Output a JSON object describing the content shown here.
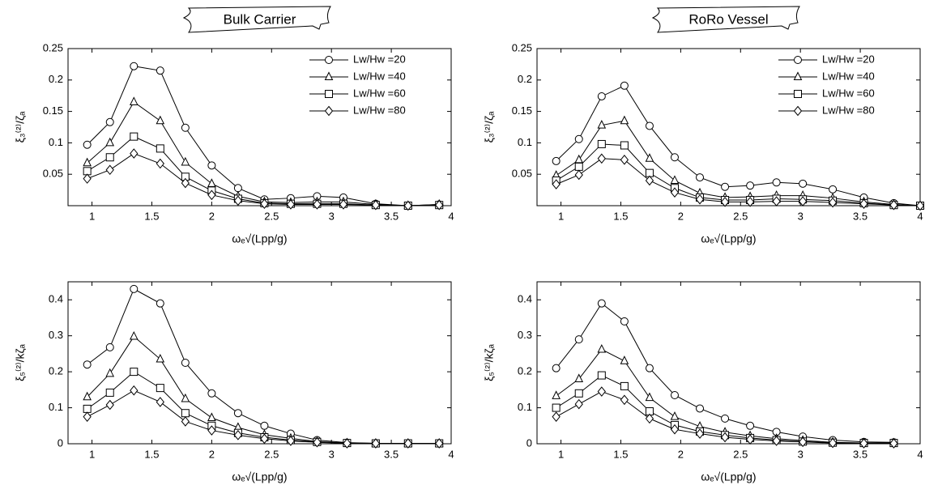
{
  "chart_data": [
    {
      "type": "line",
      "title": "Bulk Carrier",
      "x_label": "ωₑ√(Lpp/g)",
      "y_label": "ξ₃⁽²⁾/ζₐ",
      "x": [
        0.96,
        1.15,
        1.35,
        1.57,
        1.78,
        2.0,
        2.22,
        2.44,
        2.66,
        2.88,
        3.1,
        3.37,
        3.64,
        3.9
      ],
      "xlim": [
        0.8,
        4
      ],
      "xticks": [
        1,
        1.5,
        2,
        2.5,
        3,
        3.5,
        4
      ],
      "ylim": [
        0,
        0.25
      ],
      "yticks": [
        0.05,
        0.1,
        0.15,
        0.2,
        0.25
      ],
      "legend": "upper right",
      "series": [
        {
          "name": "Lw/Hw =20",
          "color": "#000000",
          "marker": "circle",
          "values": [
            0.097,
            0.133,
            0.222,
            0.215,
            0.124,
            0.064,
            0.028,
            0.01,
            0.012,
            0.015,
            0.013,
            0.003,
            0.0,
            0.002
          ]
        },
        {
          "name": "Lw/Hw =40",
          "color": "#000000",
          "marker": "triangle",
          "values": [
            0.068,
            0.1,
            0.165,
            0.135,
            0.069,
            0.035,
            0.015,
            0.006,
            0.005,
            0.006,
            0.006,
            0.002,
            0.0,
            0.002
          ]
        },
        {
          "name": "Lw/Hw =60",
          "color": "#000000",
          "marker": "square",
          "values": [
            0.055,
            0.077,
            0.11,
            0.091,
            0.046,
            0.024,
            0.011,
            0.004,
            0.003,
            0.003,
            0.003,
            0.001,
            0.0,
            0.001
          ]
        },
        {
          "name": "Lw/Hw =80",
          "color": "#000000",
          "marker": "diamond",
          "values": [
            0.043,
            0.057,
            0.083,
            0.067,
            0.036,
            0.017,
            0.008,
            0.003,
            0.002,
            0.002,
            0.002,
            0.001,
            0.0,
            0.001
          ]
        }
      ]
    },
    {
      "type": "line",
      "title": "RoRo Vessel",
      "x_label": "ωₑ√(Lpp/g)",
      "y_label": "ξ₃⁽²⁾/ζₐ",
      "x": [
        0.96,
        1.15,
        1.34,
        1.53,
        1.74,
        1.95,
        2.16,
        2.37,
        2.58,
        2.8,
        3.02,
        3.27,
        3.53,
        3.78,
        4.0
      ],
      "xlim": [
        0.8,
        4
      ],
      "xticks": [
        1,
        1.5,
        2,
        2.5,
        3,
        3.5,
        4
      ],
      "ylim": [
        0,
        0.25
      ],
      "yticks": [
        0.05,
        0.1,
        0.15,
        0.2,
        0.25
      ],
      "legend": "upper right",
      "series": [
        {
          "name": "Lw/Hw =20",
          "color": "#000000",
          "marker": "circle",
          "values": [
            0.071,
            0.106,
            0.174,
            0.191,
            0.127,
            0.077,
            0.045,
            0.03,
            0.032,
            0.037,
            0.035,
            0.026,
            0.013,
            0.004,
            0.0
          ]
        },
        {
          "name": "Lw/Hw =40",
          "color": "#000000",
          "marker": "triangle",
          "values": [
            0.048,
            0.073,
            0.128,
            0.135,
            0.075,
            0.04,
            0.02,
            0.013,
            0.014,
            0.016,
            0.016,
            0.012,
            0.006,
            0.002,
            0.0
          ]
        },
        {
          "name": "Lw/Hw =60",
          "color": "#000000",
          "marker": "square",
          "values": [
            0.04,
            0.062,
            0.098,
            0.096,
            0.052,
            0.028,
            0.013,
            0.009,
            0.009,
            0.011,
            0.01,
            0.008,
            0.004,
            0.001,
            0.0
          ]
        },
        {
          "name": "Lw/Hw =80",
          "color": "#000000",
          "marker": "diamond",
          "values": [
            0.034,
            0.049,
            0.075,
            0.073,
            0.04,
            0.021,
            0.01,
            0.006,
            0.006,
            0.007,
            0.007,
            0.005,
            0.003,
            0.001,
            0.0
          ]
        }
      ]
    },
    {
      "type": "line",
      "x_label": "ωₑ√(Lpp/g)",
      "y_label": "ξ₅⁽²⁾/kζₐ",
      "x": [
        0.96,
        1.15,
        1.35,
        1.57,
        1.78,
        2.0,
        2.22,
        2.44,
        2.66,
        2.88,
        3.13,
        3.37,
        3.64,
        3.9
      ],
      "xlim": [
        0.8,
        4
      ],
      "xticks": [
        1,
        1.5,
        2,
        2.5,
        3,
        3.5,
        4
      ],
      "ylim": [
        0,
        0.45
      ],
      "yticks": [
        0,
        0.1,
        0.2,
        0.3,
        0.4
      ],
      "series": [
        {
          "color": "#000000",
          "marker": "circle",
          "values": [
            0.22,
            0.268,
            0.43,
            0.39,
            0.225,
            0.14,
            0.085,
            0.05,
            0.028,
            0.01,
            0.003,
            0.001,
            0.001,
            0.001
          ]
        },
        {
          "color": "#000000",
          "marker": "triangle",
          "values": [
            0.13,
            0.195,
            0.298,
            0.235,
            0.125,
            0.072,
            0.045,
            0.025,
            0.015,
            0.006,
            0.002,
            0.001,
            0.001,
            0.001
          ]
        },
        {
          "color": "#000000",
          "marker": "square",
          "values": [
            0.097,
            0.142,
            0.2,
            0.155,
            0.085,
            0.05,
            0.03,
            0.018,
            0.01,
            0.005,
            0.002,
            0.001,
            0.001,
            0.001
          ]
        },
        {
          "color": "#000000",
          "marker": "diamond",
          "values": [
            0.075,
            0.108,
            0.148,
            0.116,
            0.062,
            0.037,
            0.024,
            0.014,
            0.008,
            0.004,
            0.001,
            0.001,
            0.001,
            0.001
          ]
        }
      ]
    },
    {
      "type": "line",
      "x_label": "ωₑ√(Lpp/g)",
      "y_label": "ξ₅⁽²⁾/kζₐ",
      "x": [
        0.96,
        1.15,
        1.34,
        1.53,
        1.74,
        1.95,
        2.16,
        2.37,
        2.58,
        2.8,
        3.02,
        3.27,
        3.53,
        3.78
      ],
      "xlim": [
        0.8,
        4
      ],
      "xticks": [
        1,
        1.5,
        2,
        2.5,
        3,
        3.5,
        4
      ],
      "ylim": [
        0,
        0.45
      ],
      "yticks": [
        0,
        0.1,
        0.2,
        0.3,
        0.4
      ],
      "series": [
        {
          "color": "#000000",
          "marker": "circle",
          "values": [
            0.21,
            0.29,
            0.39,
            0.34,
            0.21,
            0.135,
            0.098,
            0.07,
            0.05,
            0.033,
            0.02,
            0.01,
            0.005,
            0.004
          ]
        },
        {
          "color": "#000000",
          "marker": "triangle",
          "values": [
            0.133,
            0.18,
            0.262,
            0.23,
            0.128,
            0.075,
            0.048,
            0.032,
            0.022,
            0.014,
            0.009,
            0.004,
            0.002,
            0.002
          ]
        },
        {
          "color": "#000000",
          "marker": "square",
          "values": [
            0.1,
            0.14,
            0.19,
            0.16,
            0.09,
            0.052,
            0.034,
            0.024,
            0.016,
            0.01,
            0.006,
            0.003,
            0.002,
            0.002
          ]
        },
        {
          "color": "#000000",
          "marker": "diamond",
          "values": [
            0.075,
            0.11,
            0.145,
            0.122,
            0.07,
            0.04,
            0.028,
            0.018,
            0.012,
            0.008,
            0.005,
            0.002,
            0.001,
            0.001
          ]
        }
      ]
    }
  ]
}
